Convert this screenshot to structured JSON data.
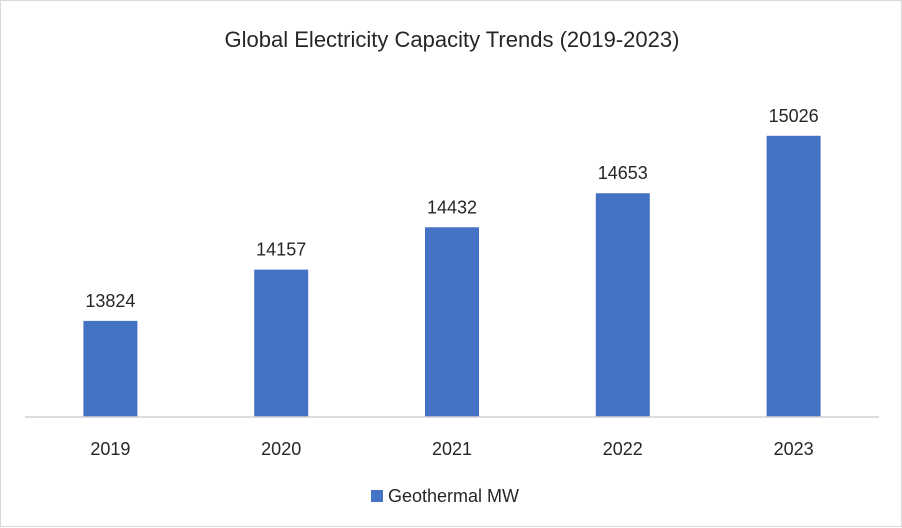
{
  "chart_data": {
    "type": "bar",
    "title": "Global Electricity Capacity Trends (2019-2023)",
    "categories": [
      "2019",
      "2020",
      "2021",
      "2022",
      "2023"
    ],
    "series": [
      {
        "name": "Geothermal MW",
        "values": [
          13824,
          14157,
          14432,
          14653,
          15026
        ],
        "color": "#4472c4"
      }
    ],
    "xlabel": "",
    "ylabel": "",
    "ylim": [
      13200,
      15200
    ],
    "y_axis_visible": false,
    "grid": false,
    "data_labels": true,
    "legend": "bottom"
  }
}
